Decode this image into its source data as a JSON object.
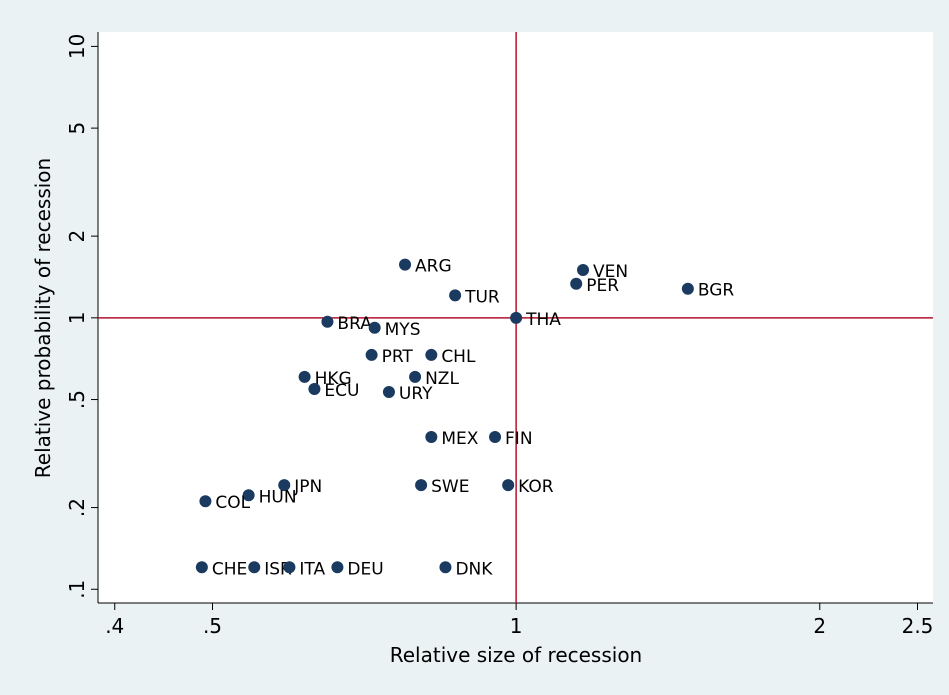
{
  "chart_data": {
    "type": "scatter",
    "xlabel": "Relative size of recession",
    "ylabel": "Relative probability of recession",
    "xscale": "log",
    "yscale": "log",
    "xlim": [
      0.385,
      2.59
    ],
    "ylim": [
      0.089,
      11.3
    ],
    "xticks": [
      {
        "value": 0.4,
        "label": ".4"
      },
      {
        "value": 0.5,
        "label": ".5"
      },
      1,
      2,
      2.5
    ],
    "yticks": [
      {
        "value": 0.1,
        "label": ".1"
      },
      {
        "value": 0.2,
        "label": ".2"
      },
      {
        "value": 0.5,
        "label": ".5"
      },
      1,
      2,
      5,
      10
    ],
    "xline": 1,
    "yline": 1,
    "line_color": "#b5122e",
    "color": "#1a3a5f",
    "labels": [
      "ARG",
      "TUR",
      "VEN",
      "PER",
      "BGR",
      "THA",
      "BRA",
      "MYS",
      "PRT",
      "CHL",
      "HKG",
      "NZL",
      "ECU",
      "URY",
      "MEX",
      "FIN",
      "JPN",
      "SWE",
      "KOR",
      "HUN",
      "COL",
      "CHE",
      "ISR",
      "ITA",
      "DEU",
      "DNK"
    ],
    "x": [
      0.776,
      0.87,
      1.165,
      1.147,
      1.48,
      1,
      0.65,
      0.724,
      0.719,
      0.824,
      0.617,
      0.794,
      0.631,
      0.748,
      0.824,
      0.953,
      0.589,
      0.805,
      0.982,
      0.543,
      0.492,
      0.488,
      0.55,
      0.596,
      0.665,
      0.851
    ],
    "y": [
      1.57,
      1.21,
      1.5,
      1.335,
      1.28,
      1,
      0.967,
      0.919,
      0.73,
      0.73,
      0.606,
      0.606,
      0.547,
      0.533,
      0.364,
      0.364,
      0.242,
      0.242,
      0.242,
      0.222,
      0.211,
      0.1205,
      0.1205,
      0.1205,
      0.1205,
      0.1205
    ]
  }
}
